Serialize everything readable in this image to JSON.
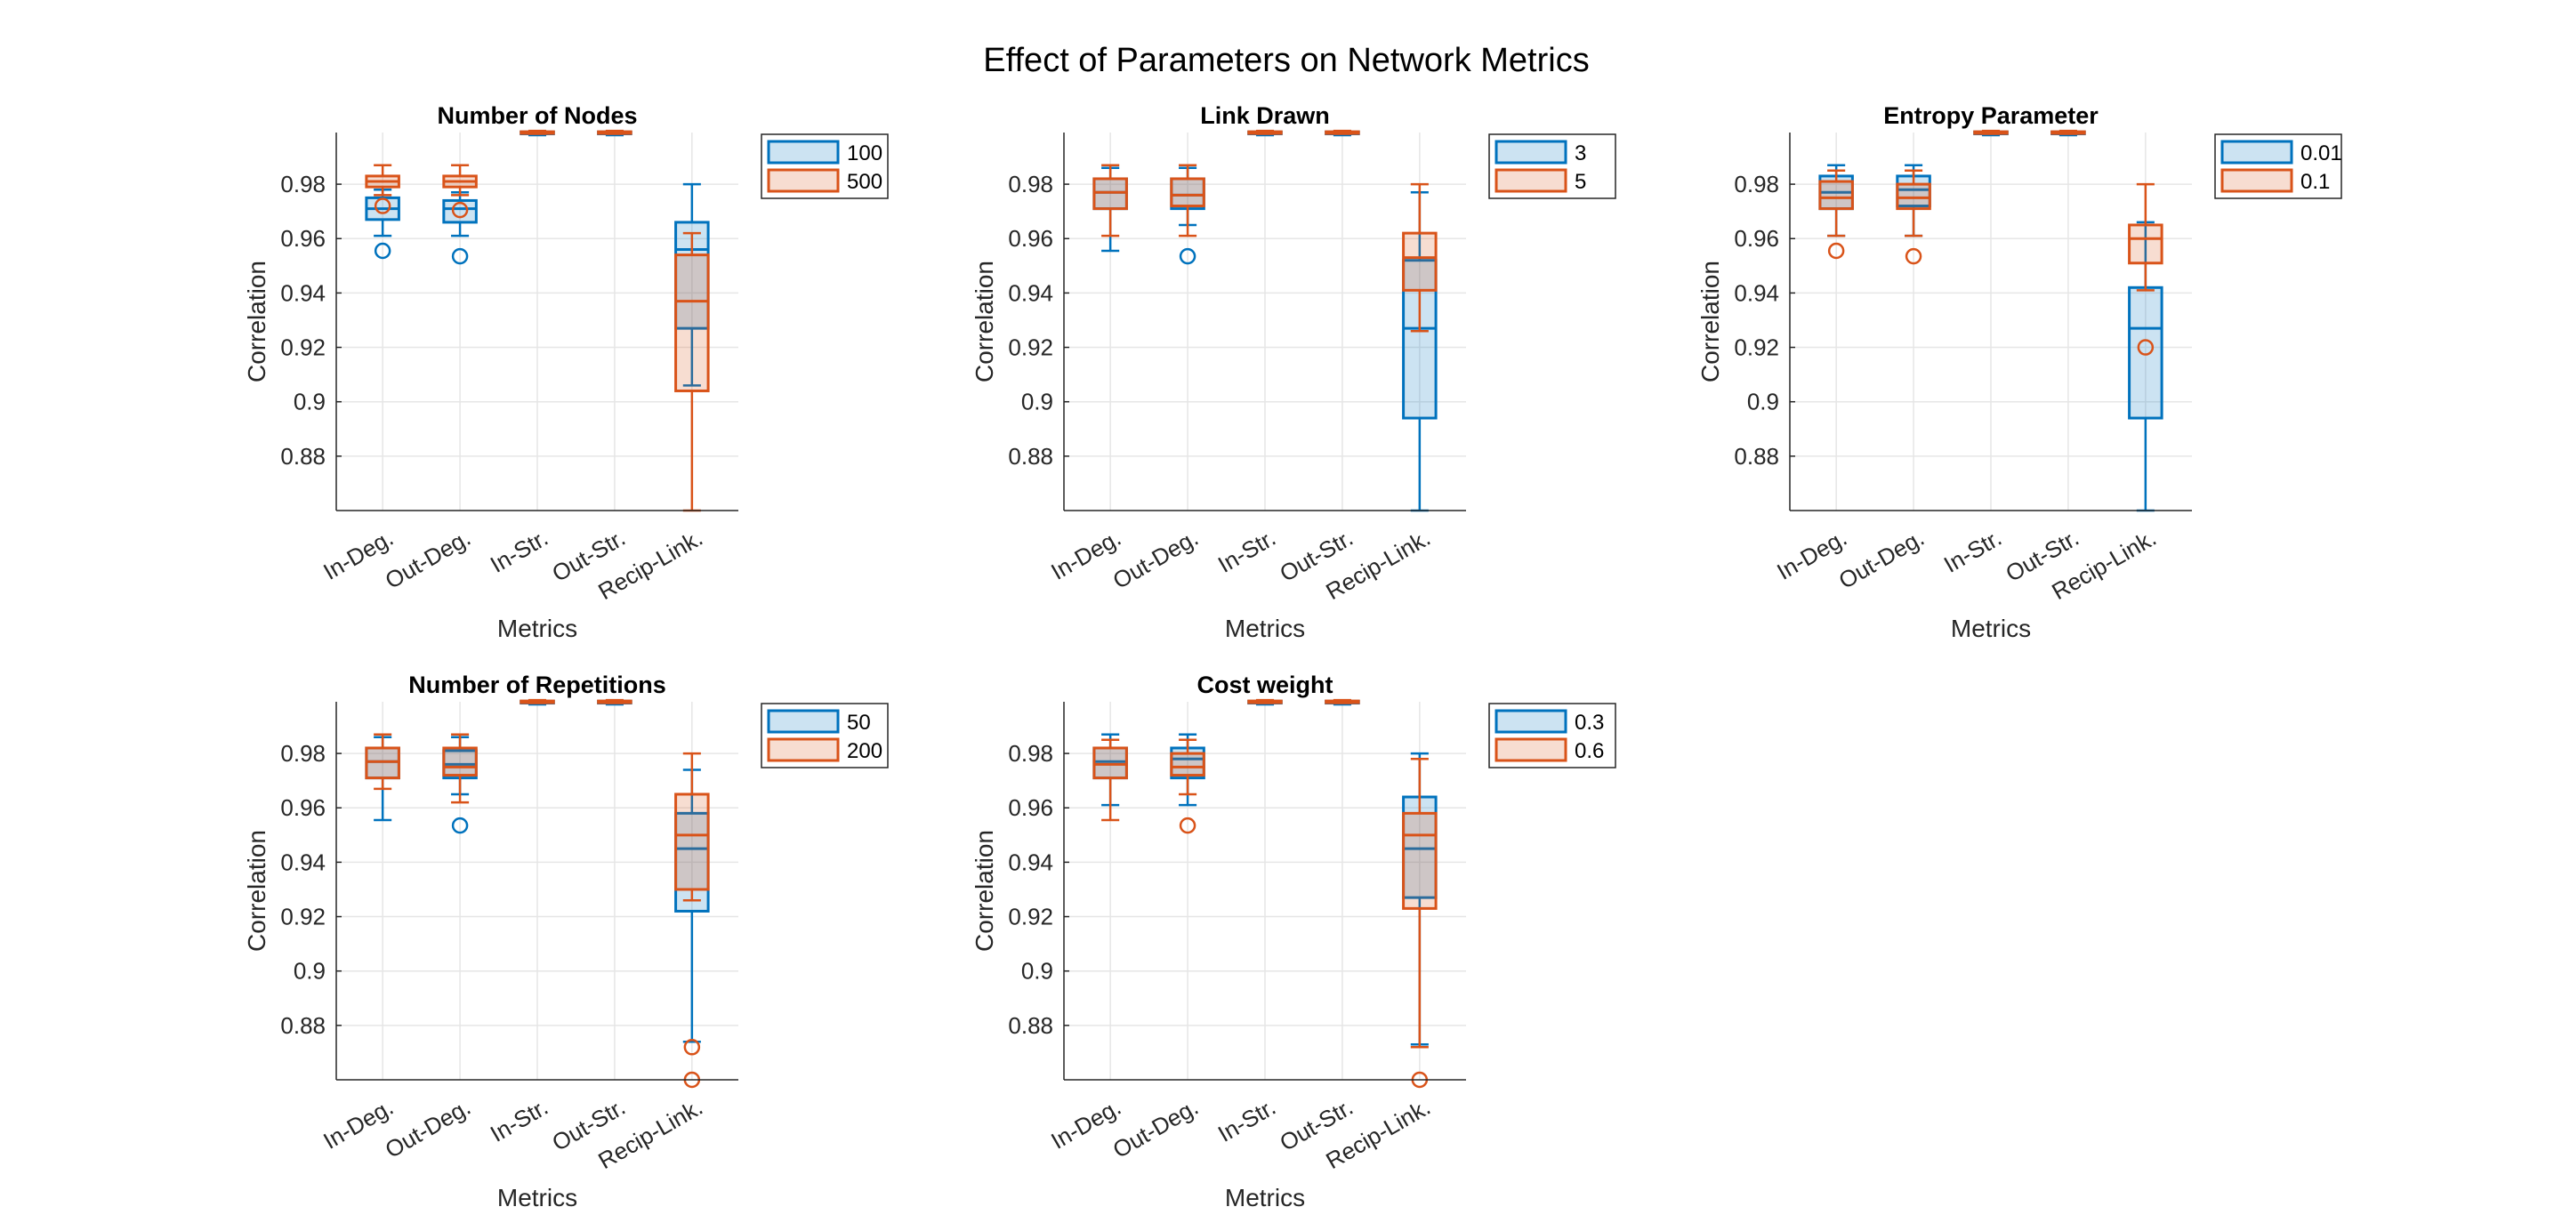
{
  "figure": {
    "title": "Effect of Parameters on Network Metrics"
  },
  "colors": {
    "series1": "#0072BD",
    "series2": "#D95319",
    "grid": "#E6E6E6",
    "axis": "#262626"
  },
  "chart_data": [
    {
      "type": "box",
      "title": "Number of Nodes",
      "xlabel": "Metrics",
      "ylabel": "Correlation",
      "ylim": [
        0.86,
        0.999
      ],
      "yticks": [
        "0.88",
        "0.9",
        "0.92",
        "0.94",
        "0.96",
        "0.98"
      ],
      "categories": [
        "In-Deg.",
        "Out-Deg.",
        "In-Str.",
        "Out-Str.",
        "Recip-Link."
      ],
      "legend": {
        "placement": "outside-top-right",
        "entries": [
          "100",
          "500"
        ]
      },
      "grid": true,
      "series": [
        {
          "name": "100",
          "boxes": [
            {
              "min": 0.961,
              "q1": 0.967,
              "median": 0.971,
              "q3": 0.975,
              "max": 0.978,
              "outliers": [
                0.9555
              ]
            },
            {
              "min": 0.961,
              "q1": 0.966,
              "median": 0.971,
              "q3": 0.974,
              "max": 0.977,
              "outliers": [
                0.9535
              ]
            },
            {
              "min": 0.998,
              "q1": 0.9985,
              "median": 0.999,
              "q3": 0.9992,
              "max": 0.9995,
              "outliers": []
            },
            {
              "min": 0.998,
              "q1": 0.9985,
              "median": 0.999,
              "q3": 0.9992,
              "max": 0.9995,
              "outliers": []
            },
            {
              "min": 0.906,
              "q1": 0.927,
              "median": 0.956,
              "q3": 0.966,
              "max": 0.98,
              "outliers": []
            }
          ]
        },
        {
          "name": "500",
          "boxes": [
            {
              "min": 0.976,
              "q1": 0.979,
              "median": 0.981,
              "q3": 0.983,
              "max": 0.987,
              "outliers": [
                0.972
              ]
            },
            {
              "min": 0.976,
              "q1": 0.979,
              "median": 0.981,
              "q3": 0.983,
              "max": 0.987,
              "outliers": [
                0.9705
              ]
            },
            {
              "min": 0.9985,
              "q1": 0.9988,
              "median": 0.999,
              "q3": 0.9993,
              "max": 0.9996,
              "outliers": []
            },
            {
              "min": 0.9985,
              "q1": 0.9988,
              "median": 0.999,
              "q3": 0.9993,
              "max": 0.9996,
              "outliers": []
            },
            {
              "min": 0.86,
              "q1": 0.904,
              "median": 0.937,
              "q3": 0.954,
              "max": 0.962,
              "outliers": []
            }
          ]
        }
      ]
    },
    {
      "type": "box",
      "title": "Link Drawn",
      "xlabel": "Metrics",
      "ylabel": "Correlation",
      "ylim": [
        0.86,
        0.999
      ],
      "yticks": [
        "0.88",
        "0.9",
        "0.92",
        "0.94",
        "0.96",
        "0.98"
      ],
      "categories": [
        "In-Deg.",
        "Out-Deg.",
        "In-Str.",
        "Out-Str.",
        "Recip-Link."
      ],
      "legend": {
        "placement": "outside-top-right",
        "entries": [
          "3",
          "5"
        ]
      },
      "grid": true,
      "series": [
        {
          "name": "3",
          "boxes": [
            {
              "min": 0.9555,
              "q1": 0.971,
              "median": 0.977,
              "q3": 0.982,
              "max": 0.986,
              "outliers": []
            },
            {
              "min": 0.965,
              "q1": 0.971,
              "median": 0.976,
              "q3": 0.982,
              "max": 0.986,
              "outliers": [
                0.9535
              ]
            },
            {
              "min": 0.998,
              "q1": 0.9985,
              "median": 0.999,
              "q3": 0.9992,
              "max": 0.9995,
              "outliers": []
            },
            {
              "min": 0.998,
              "q1": 0.9985,
              "median": 0.999,
              "q3": 0.9992,
              "max": 0.9995,
              "outliers": []
            },
            {
              "min": 0.86,
              "q1": 0.894,
              "median": 0.927,
              "q3": 0.952,
              "max": 0.977,
              "outliers": []
            }
          ]
        },
        {
          "name": "5",
          "boxes": [
            {
              "min": 0.961,
              "q1": 0.971,
              "median": 0.977,
              "q3": 0.982,
              "max": 0.987,
              "outliers": []
            },
            {
              "min": 0.961,
              "q1": 0.972,
              "median": 0.976,
              "q3": 0.982,
              "max": 0.987,
              "outliers": []
            },
            {
              "min": 0.9985,
              "q1": 0.9988,
              "median": 0.999,
              "q3": 0.9993,
              "max": 0.9996,
              "outliers": []
            },
            {
              "min": 0.9985,
              "q1": 0.9988,
              "median": 0.999,
              "q3": 0.9993,
              "max": 0.9996,
              "outliers": []
            },
            {
              "min": 0.926,
              "q1": 0.941,
              "median": 0.953,
              "q3": 0.962,
              "max": 0.98,
              "outliers": []
            }
          ]
        }
      ]
    },
    {
      "type": "box",
      "title": "Entropy Parameter",
      "xlabel": "Metrics",
      "ylabel": "Correlation",
      "ylim": [
        0.86,
        0.999
      ],
      "yticks": [
        "0.88",
        "0.9",
        "0.92",
        "0.94",
        "0.96",
        "0.98"
      ],
      "categories": [
        "In-Deg.",
        "Out-Deg.",
        "In-Str.",
        "Out-Str.",
        "Recip-Link."
      ],
      "legend": {
        "placement": "outside-top-right",
        "entries": [
          "0.01",
          "0.1"
        ]
      },
      "grid": true,
      "series": [
        {
          "name": "0.01",
          "boxes": [
            {
              "min": 0.961,
              "q1": 0.971,
              "median": 0.977,
              "q3": 0.983,
              "max": 0.987,
              "outliers": []
            },
            {
              "min": 0.961,
              "q1": 0.972,
              "median": 0.978,
              "q3": 0.983,
              "max": 0.987,
              "outliers": []
            },
            {
              "min": 0.998,
              "q1": 0.9985,
              "median": 0.999,
              "q3": 0.9992,
              "max": 0.9995,
              "outliers": []
            },
            {
              "min": 0.998,
              "q1": 0.9985,
              "median": 0.999,
              "q3": 0.9992,
              "max": 0.9995,
              "outliers": []
            },
            {
              "min": 0.86,
              "q1": 0.894,
              "median": 0.927,
              "q3": 0.942,
              "max": 0.966,
              "outliers": []
            }
          ]
        },
        {
          "name": "0.1",
          "boxes": [
            {
              "min": 0.961,
              "q1": 0.971,
              "median": 0.975,
              "q3": 0.981,
              "max": 0.985,
              "outliers": [
                0.9555
              ]
            },
            {
              "min": 0.961,
              "q1": 0.971,
              "median": 0.975,
              "q3": 0.98,
              "max": 0.985,
              "outliers": [
                0.9535
              ]
            },
            {
              "min": 0.9985,
              "q1": 0.9988,
              "median": 0.999,
              "q3": 0.9993,
              "max": 0.9996,
              "outliers": []
            },
            {
              "min": 0.9985,
              "q1": 0.9988,
              "median": 0.999,
              "q3": 0.9993,
              "max": 0.9996,
              "outliers": []
            },
            {
              "min": 0.941,
              "q1": 0.951,
              "median": 0.96,
              "q3": 0.965,
              "max": 0.98,
              "outliers": [
                0.92
              ]
            }
          ]
        }
      ]
    },
    {
      "type": "box",
      "title": "Number of Repetitions",
      "xlabel": "Metrics",
      "ylabel": "Correlation",
      "ylim": [
        0.86,
        0.999
      ],
      "yticks": [
        "0.88",
        "0.9",
        "0.92",
        "0.94",
        "0.96",
        "0.98"
      ],
      "categories": [
        "In-Deg.",
        "Out-Deg.",
        "In-Str.",
        "Out-Str.",
        "Recip-Link."
      ],
      "legend": {
        "placement": "outside-top-right",
        "entries": [
          "50",
          "200"
        ]
      },
      "grid": true,
      "series": [
        {
          "name": "50",
          "boxes": [
            {
              "min": 0.9555,
              "q1": 0.971,
              "median": 0.977,
              "q3": 0.982,
              "max": 0.986,
              "outliers": []
            },
            {
              "min": 0.965,
              "q1": 0.971,
              "median": 0.976,
              "q3": 0.981,
              "max": 0.986,
              "outliers": [
                0.9535
              ]
            },
            {
              "min": 0.998,
              "q1": 0.9985,
              "median": 0.999,
              "q3": 0.9992,
              "max": 0.9995,
              "outliers": []
            },
            {
              "min": 0.998,
              "q1": 0.9985,
              "median": 0.999,
              "q3": 0.9992,
              "max": 0.9995,
              "outliers": []
            },
            {
              "min": 0.874,
              "q1": 0.922,
              "median": 0.945,
              "q3": 0.958,
              "max": 0.974,
              "outliers": []
            }
          ]
        },
        {
          "name": "200",
          "boxes": [
            {
              "min": 0.967,
              "q1": 0.971,
              "median": 0.977,
              "q3": 0.982,
              "max": 0.987,
              "outliers": []
            },
            {
              "min": 0.962,
              "q1": 0.972,
              "median": 0.975,
              "q3": 0.982,
              "max": 0.987,
              "outliers": []
            },
            {
              "min": 0.9985,
              "q1": 0.9988,
              "median": 0.999,
              "q3": 0.9993,
              "max": 0.9996,
              "outliers": []
            },
            {
              "min": 0.9985,
              "q1": 0.9988,
              "median": 0.999,
              "q3": 0.9993,
              "max": 0.9996,
              "outliers": []
            },
            {
              "min": 0.926,
              "q1": 0.93,
              "median": 0.95,
              "q3": 0.965,
              "max": 0.98,
              "outliers": [
                0.872,
                0.86
              ]
            }
          ]
        }
      ]
    },
    {
      "type": "box",
      "title": "Cost weight",
      "xlabel": "Metrics",
      "ylabel": "Correlation",
      "ylim": [
        0.86,
        0.999
      ],
      "yticks": [
        "0.88",
        "0.9",
        "0.92",
        "0.94",
        "0.96",
        "0.98"
      ],
      "categories": [
        "In-Deg.",
        "Out-Deg.",
        "In-Str.",
        "Out-Str.",
        "Recip-Link."
      ],
      "legend": {
        "placement": "outside-top-right",
        "entries": [
          "0.3",
          "0.6"
        ]
      },
      "grid": true,
      "series": [
        {
          "name": "0.3",
          "boxes": [
            {
              "min": 0.961,
              "q1": 0.971,
              "median": 0.977,
              "q3": 0.982,
              "max": 0.987,
              "outliers": []
            },
            {
              "min": 0.961,
              "q1": 0.971,
              "median": 0.978,
              "q3": 0.982,
              "max": 0.987,
              "outliers": []
            },
            {
              "min": 0.998,
              "q1": 0.9985,
              "median": 0.999,
              "q3": 0.9992,
              "max": 0.9995,
              "outliers": []
            },
            {
              "min": 0.998,
              "q1": 0.9985,
              "median": 0.999,
              "q3": 0.9992,
              "max": 0.9995,
              "outliers": []
            },
            {
              "min": 0.873,
              "q1": 0.927,
              "median": 0.945,
              "q3": 0.964,
              "max": 0.98,
              "outliers": []
            }
          ]
        },
        {
          "name": "0.6",
          "boxes": [
            {
              "min": 0.9555,
              "q1": 0.971,
              "median": 0.976,
              "q3": 0.982,
              "max": 0.985,
              "outliers": []
            },
            {
              "min": 0.965,
              "q1": 0.972,
              "median": 0.975,
              "q3": 0.98,
              "max": 0.985,
              "outliers": [
                0.9535
              ]
            },
            {
              "min": 0.9985,
              "q1": 0.9988,
              "median": 0.999,
              "q3": 0.9993,
              "max": 0.9996,
              "outliers": []
            },
            {
              "min": 0.9985,
              "q1": 0.9988,
              "median": 0.999,
              "q3": 0.9993,
              "max": 0.9996,
              "outliers": []
            },
            {
              "min": 0.872,
              "q1": 0.923,
              "median": 0.95,
              "q3": 0.958,
              "max": 0.978,
              "outliers": [
                0.86
              ]
            }
          ]
        }
      ]
    }
  ]
}
